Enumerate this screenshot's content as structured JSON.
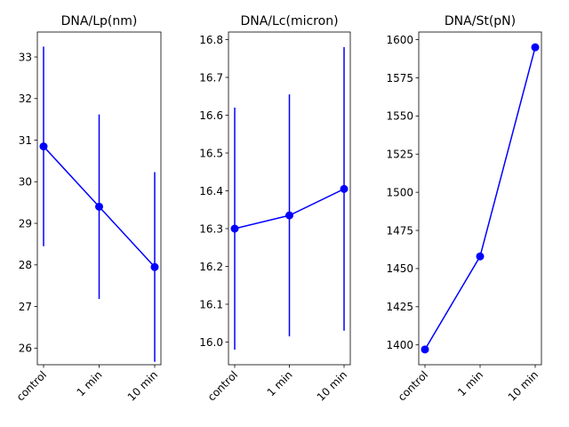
{
  "figure": {
    "color": "#0000ff"
  },
  "chart_data": [
    {
      "type": "line",
      "title": "DNA/Lp(nm)",
      "categories": [
        "control",
        "1 min",
        "10 min"
      ],
      "values": [
        30.85,
        29.4,
        27.95
      ],
      "errors": [
        2.4,
        2.22,
        2.28
      ],
      "ylim": [
        25.6,
        33.6
      ],
      "yticks": [
        26,
        27,
        28,
        29,
        30,
        31,
        32,
        33
      ],
      "ytick_labels": [
        "26",
        "27",
        "28",
        "29",
        "30",
        "31",
        "32",
        "33"
      ],
      "xtick_labels": [
        "control",
        "1 min",
        "10 min"
      ]
    },
    {
      "type": "line",
      "title": "DNA/Lc(micron)",
      "categories": [
        "control",
        "1 min",
        "10 min"
      ],
      "values": [
        16.3,
        16.335,
        16.405
      ],
      "errors": [
        0.32,
        0.32,
        0.375
      ],
      "ylim": [
        15.94,
        16.82
      ],
      "yticks": [
        16.0,
        16.1,
        16.2,
        16.3,
        16.4,
        16.5,
        16.6,
        16.7,
        16.8
      ],
      "ytick_labels": [
        "16.0",
        "16.1",
        "16.2",
        "16.3",
        "16.4",
        "16.5",
        "16.6",
        "16.7",
        "16.8"
      ],
      "xtick_labels": [
        "control",
        "1 min",
        "10 min"
      ]
    },
    {
      "type": "line",
      "title": "DNA/St(pN)",
      "categories": [
        "control",
        "1 min",
        "10 min"
      ],
      "values": [
        1397,
        1458,
        1595
      ],
      "ylim": [
        1387,
        1605
      ],
      "yticks": [
        1400,
        1425,
        1450,
        1475,
        1500,
        1525,
        1550,
        1575,
        1600
      ],
      "ytick_labels": [
        "1400",
        "1425",
        "1450",
        "1475",
        "1500",
        "1525",
        "1550",
        "1575",
        "1600"
      ],
      "xtick_labels": [
        "control",
        "1 min",
        "10 min"
      ]
    }
  ]
}
